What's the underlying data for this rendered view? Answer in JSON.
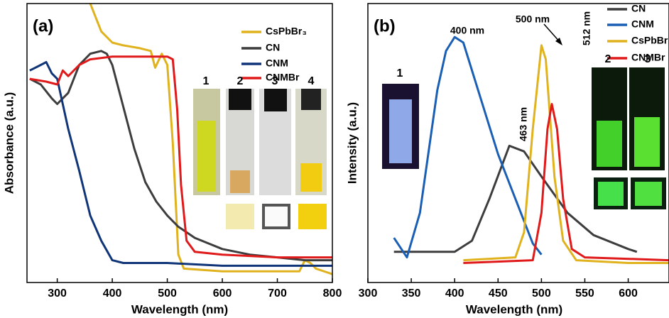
{
  "chart_data": [
    {
      "type": "line",
      "panel_label": "(a)",
      "x_label": "Wavelength (nm)",
      "y_label": "Absorbance (a.u.)",
      "xlim": [
        245,
        800
      ],
      "xticks": [
        300,
        400,
        500,
        600,
        700,
        800
      ],
      "ylim": [
        0,
        1
      ],
      "legend": "upper right",
      "photo_labels": [
        "1",
        "2",
        "3",
        "4"
      ],
      "series": [
        {
          "name": "CsPbBr₃",
          "color": "#e0b21e",
          "x": [
            360,
            380,
            400,
            420,
            450,
            470,
            478,
            490,
            500,
            510,
            520,
            530,
            600,
            740,
            750,
            760,
            770,
            800
          ],
          "values": [
            1.0,
            0.9,
            0.86,
            0.85,
            0.84,
            0.83,
            0.77,
            0.82,
            0.78,
            0.5,
            0.1,
            0.05,
            0.04,
            0.04,
            0.08,
            0.07,
            0.05,
            0.03
          ]
        },
        {
          "name": "CN",
          "color": "#3d3d3d",
          "x": [
            250,
            270,
            290,
            300,
            320,
            340,
            360,
            380,
            390,
            400,
            420,
            440,
            460,
            480,
            500,
            520,
            550,
            600,
            650,
            700,
            750,
            800
          ],
          "values": [
            0.73,
            0.71,
            0.66,
            0.64,
            0.68,
            0.78,
            0.82,
            0.83,
            0.82,
            0.78,
            0.63,
            0.48,
            0.36,
            0.29,
            0.24,
            0.2,
            0.16,
            0.12,
            0.1,
            0.09,
            0.08,
            0.08
          ]
        },
        {
          "name": "CNM",
          "color": "#0f3478",
          "x": [
            250,
            270,
            280,
            290,
            300,
            320,
            340,
            360,
            380,
            400,
            420,
            500,
            600,
            800
          ],
          "values": [
            0.76,
            0.78,
            0.79,
            0.75,
            0.73,
            0.55,
            0.4,
            0.24,
            0.15,
            0.08,
            0.07,
            0.07,
            0.06,
            0.06
          ]
        },
        {
          "name": "CNMBr",
          "color": "#e01a1a",
          "x": [
            250,
            280,
            300,
            310,
            320,
            340,
            360,
            400,
            450,
            500,
            510,
            518,
            525,
            535,
            550,
            600,
            700,
            800
          ],
          "values": [
            0.73,
            0.72,
            0.71,
            0.76,
            0.74,
            0.78,
            0.8,
            0.81,
            0.81,
            0.81,
            0.8,
            0.62,
            0.35,
            0.15,
            0.11,
            0.1,
            0.09,
            0.09
          ]
        }
      ]
    },
    {
      "type": "line",
      "panel_label": "(b)",
      "x_label": "Wavelength (nm)",
      "y_label": "Intensity (a.u.)",
      "xlim": [
        300,
        647
      ],
      "xticks": [
        300,
        350,
        400,
        450,
        500,
        550,
        600
      ],
      "ylim": [
        0,
        1
      ],
      "legend": "upper right",
      "photo_labels": [
        "1",
        "2",
        "3"
      ],
      "annotations": [
        "400 nm",
        "500 nm",
        "463 nm",
        "512 nm"
      ],
      "series": [
        {
          "name": "CN",
          "color": "#3d3d3d",
          "x": [
            330,
            400,
            420,
            440,
            463,
            480,
            500,
            530,
            560,
            600,
            610
          ],
          "values": [
            0.11,
            0.11,
            0.15,
            0.3,
            0.49,
            0.47,
            0.38,
            0.25,
            0.17,
            0.12,
            0.11
          ]
        },
        {
          "name": "CNM",
          "color": "#1a5fb4",
          "x": [
            330,
            345,
            360,
            380,
            390,
            400,
            410,
            430,
            450,
            470,
            490,
            500
          ],
          "values": [
            0.16,
            0.09,
            0.25,
            0.69,
            0.83,
            0.88,
            0.86,
            0.66,
            0.46,
            0.3,
            0.14,
            0.1
          ]
        },
        {
          "name": "CsPbBr₃",
          "color": "#e0b21e",
          "x": [
            410,
            470,
            480,
            490,
            500,
            505,
            515,
            525,
            540,
            600,
            647
          ],
          "values": [
            0.08,
            0.09,
            0.18,
            0.55,
            0.85,
            0.8,
            0.38,
            0.15,
            0.08,
            0.07,
            0.07
          ]
        },
        {
          "name": "CNMBr",
          "color": "#e01a1a",
          "x": [
            410,
            490,
            500,
            507,
            512,
            518,
            525,
            535,
            550,
            647
          ],
          "values": [
            0.07,
            0.08,
            0.25,
            0.55,
            0.64,
            0.55,
            0.3,
            0.12,
            0.09,
            0.08
          ]
        }
      ]
    }
  ]
}
